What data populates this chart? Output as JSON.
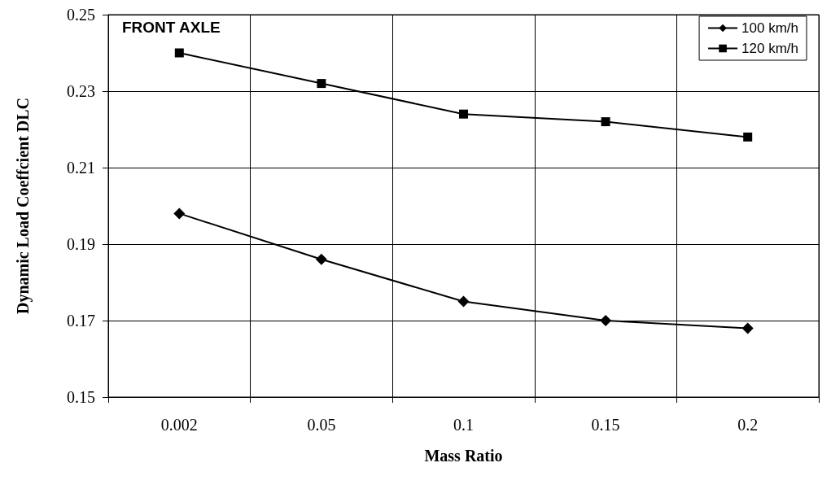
{
  "chart_data": {
    "type": "line",
    "xlabel": "Mass Ratio",
    "ylabel": "Dynamic Load Coeffcient DLC",
    "annotations": [
      "FRONT AXLE"
    ],
    "categories": [
      "0.002",
      "0.05",
      "0.1",
      "0.15",
      "0.2"
    ],
    "series": [
      {
        "name": "100 km/h",
        "color": "#000000",
        "marker": "diamond",
        "values": [
          0.198,
          0.186,
          0.175,
          0.17,
          0.168
        ]
      },
      {
        "name": "120 km/h",
        "color": "#000000",
        "marker": "square",
        "values": [
          0.24,
          0.232,
          0.224,
          0.222,
          0.218
        ]
      }
    ],
    "ylim": [
      0.15,
      0.25
    ],
    "yticks": [
      0.15,
      0.17,
      0.19,
      0.21,
      0.23,
      0.25
    ],
    "grid": true,
    "legend": "top right",
    "line_style": "solid"
  }
}
